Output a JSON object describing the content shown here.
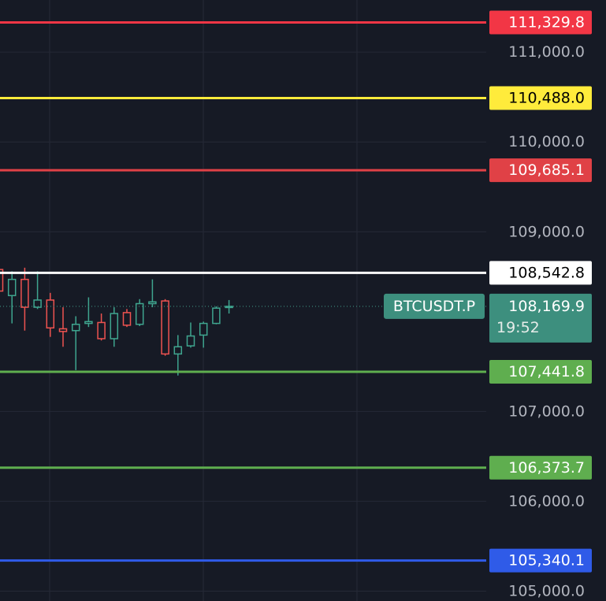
{
  "chart_data": {
    "type": "candlestick",
    "open": [
      108580,
      108290,
      108470,
      108160,
      108240,
      107920,
      107900,
      107980,
      107990,
      107810,
      108100,
      107970,
      108200,
      108230,
      107640,
      107730,
      107850,
      107980,
      108160
    ],
    "high": [
      108600,
      108560,
      108600,
      108560,
      108320,
      108160,
      108060,
      108270,
      108090,
      108160,
      108140,
      108250,
      108470,
      108250,
      107850,
      107990,
      108000,
      108170,
      108240
    ],
    "low": [
      108320,
      107980,
      107900,
      108140,
      107830,
      107720,
      107460,
      107940,
      107790,
      107720,
      107940,
      107950,
      108160,
      107620,
      107400,
      107710,
      107710,
      107970,
      108090
    ],
    "close": [
      108340,
      108470,
      108160,
      108240,
      107930,
      107890,
      107970,
      108000,
      107810,
      108090,
      107960,
      108200,
      108220,
      107640,
      107720,
      107840,
      107980,
      108150,
      108170
    ],
    "up_color": "#3fa58f",
    "down_color": "#ef5350",
    "ylim": [
      104890,
      111580
    ],
    "yticks": [
      {
        "value": 111000,
        "label": "111,000.0"
      },
      {
        "value": 110000,
        "label": "110,000.0"
      },
      {
        "value": 109000,
        "label": "109,000.0"
      },
      {
        "value": 107000,
        "label": "107,000.0"
      },
      {
        "value": 106000,
        "label": "106,000.0"
      },
      {
        "value": 105000,
        "label": "105,000.0"
      }
    ],
    "grid": true,
    "lines": [
      {
        "value": 111329.8,
        "label": "111,329.8",
        "color": "#f23645",
        "text_color": "#ffffff"
      },
      {
        "value": 110488.0,
        "label": "110,488.0",
        "color": "#ffeb3b",
        "text_color": "#000000"
      },
      {
        "value": 109685.1,
        "label": "109,685.1",
        "color": "#e04146",
        "text_color": "#ffffff"
      },
      {
        "value": 108542.8,
        "label": "108,542.8",
        "color": "#ffffff",
        "text_color": "#000000"
      },
      {
        "value": 107441.8,
        "label": "107,441.8",
        "color": "#5fae4f",
        "text_color": "#ffffff"
      },
      {
        "value": 106373.7,
        "label": "106,373.7",
        "color": "#5fae4f",
        "text_color": "#ffffff"
      },
      {
        "value": 105340.1,
        "label": "105,340.1",
        "color": "#2f5be8",
        "text_color": "#ffffff"
      }
    ],
    "current": {
      "symbol": "BTCUSDT.P",
      "value": 108169.9,
      "label": "108,169.9",
      "countdown": "19:52",
      "color": "#3d8f7e"
    }
  }
}
